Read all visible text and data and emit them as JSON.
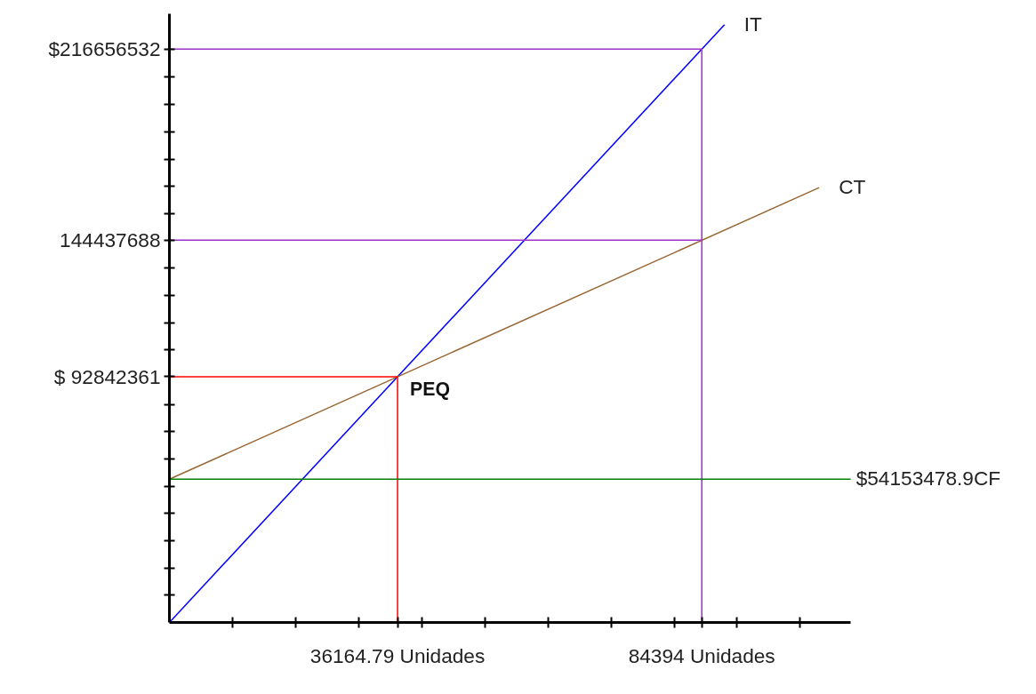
{
  "chart_data": {
    "type": "line",
    "xlim": [
      0,
      108000
    ],
    "ylim": [
      0,
      230000000
    ],
    "grid": false,
    "legend": false,
    "line_style": "solid",
    "marker": "none",
    "xticks": [
      {
        "value": 10000,
        "label": null
      },
      {
        "value": 20000,
        "label": null
      },
      {
        "value": 30000,
        "label": null
      },
      {
        "value": 36164.79,
        "label": "36164.79 Unidades"
      },
      {
        "value": 40000,
        "label": null
      },
      {
        "value": 50000,
        "label": null
      },
      {
        "value": 60000,
        "label": null
      },
      {
        "value": 70000,
        "label": null
      },
      {
        "value": 80000,
        "label": null
      },
      {
        "value": 84394,
        "label": "84394 Unidades"
      },
      {
        "value": 90000,
        "label": null
      },
      {
        "value": 100000,
        "label": null
      }
    ],
    "yticks": [
      {
        "value": 10300000,
        "label": null
      },
      {
        "value": 20600000,
        "label": null
      },
      {
        "value": 30900000,
        "label": null
      },
      {
        "value": 41200000,
        "label": null
      },
      {
        "value": 51500000,
        "label": null
      },
      {
        "value": 61800000,
        "label": null
      },
      {
        "value": 72100000,
        "label": null
      },
      {
        "value": 82400000,
        "label": null
      },
      {
        "value": 92842361,
        "label": "$ 92842361"
      },
      {
        "value": 103000000,
        "label": null
      },
      {
        "value": 113300000,
        "label": null
      },
      {
        "value": 123600000,
        "label": null
      },
      {
        "value": 133900000,
        "label": null
      },
      {
        "value": 144437688,
        "label": "144437688"
      },
      {
        "value": 154500000,
        "label": null
      },
      {
        "value": 164800000,
        "label": null
      },
      {
        "value": 175100000,
        "label": null
      },
      {
        "value": 185400000,
        "label": null
      },
      {
        "value": 195700000,
        "label": null
      },
      {
        "value": 206000000,
        "label": null
      },
      {
        "value": 216656532,
        "label": "$216656532"
      }
    ],
    "series": [
      {
        "name": "IT",
        "color": "#0000ff",
        "x": [
          0,
          88000
        ],
        "values": [
          0,
          225900000
        ]
      },
      {
        "name": "CT",
        "color": "#996633",
        "x": [
          0,
          103000
        ],
        "values": [
          54153478.9,
          164300000
        ]
      },
      {
        "color": "#9933cc",
        "x": [
          0,
          84394,
          84394
        ],
        "values": [
          216656532,
          216656532,
          0
        ]
      },
      {
        "color": "#9933cc",
        "x": [
          0,
          84394
        ],
        "values": [
          144437688,
          144437688
        ]
      },
      {
        "color": "#ff0000",
        "x": [
          0,
          36164.79,
          36164.79
        ],
        "values": [
          92842361,
          92842361,
          0
        ]
      }
    ],
    "ref_lines": [
      {
        "axis": "y",
        "value": 54153478.9,
        "label": "$54153478.9CF",
        "color": "#008000"
      }
    ],
    "annotations": [
      {
        "text": "PEQ",
        "x": 36164.79,
        "y": 92842361
      }
    ]
  }
}
